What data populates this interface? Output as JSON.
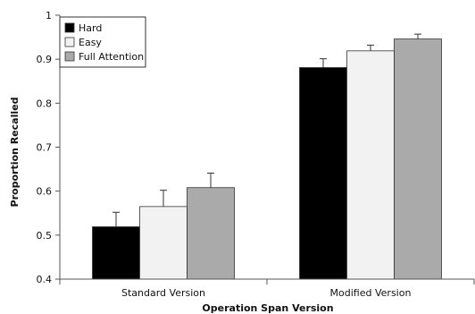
{
  "chart_data": {
    "type": "bar",
    "title": "",
    "xlabel": "Operation Span Version",
    "ylabel": "Proportion Recalled",
    "categories": [
      "Standard Version",
      "Modified Version"
    ],
    "ylim": [
      0.4,
      1
    ],
    "yticks": [
      "0.4",
      "0.5",
      "0.6",
      "0.7",
      "0.8",
      "0.9",
      "1"
    ],
    "grid": false,
    "legend_position": "top-left",
    "series": [
      {
        "name": "Hard",
        "color": "#000000",
        "values": [
          0.519,
          0.881
        ],
        "errors": [
          0.033,
          0.02
        ]
      },
      {
        "name": "Easy",
        "color": "#f2f2f2",
        "values": [
          0.565,
          0.919
        ],
        "errors": [
          0.037,
          0.013
        ]
      },
      {
        "name": "Full Attention",
        "color": "#aaaaaa",
        "values": [
          0.608,
          0.946
        ],
        "errors": [
          0.033,
          0.011
        ]
      }
    ]
  }
}
